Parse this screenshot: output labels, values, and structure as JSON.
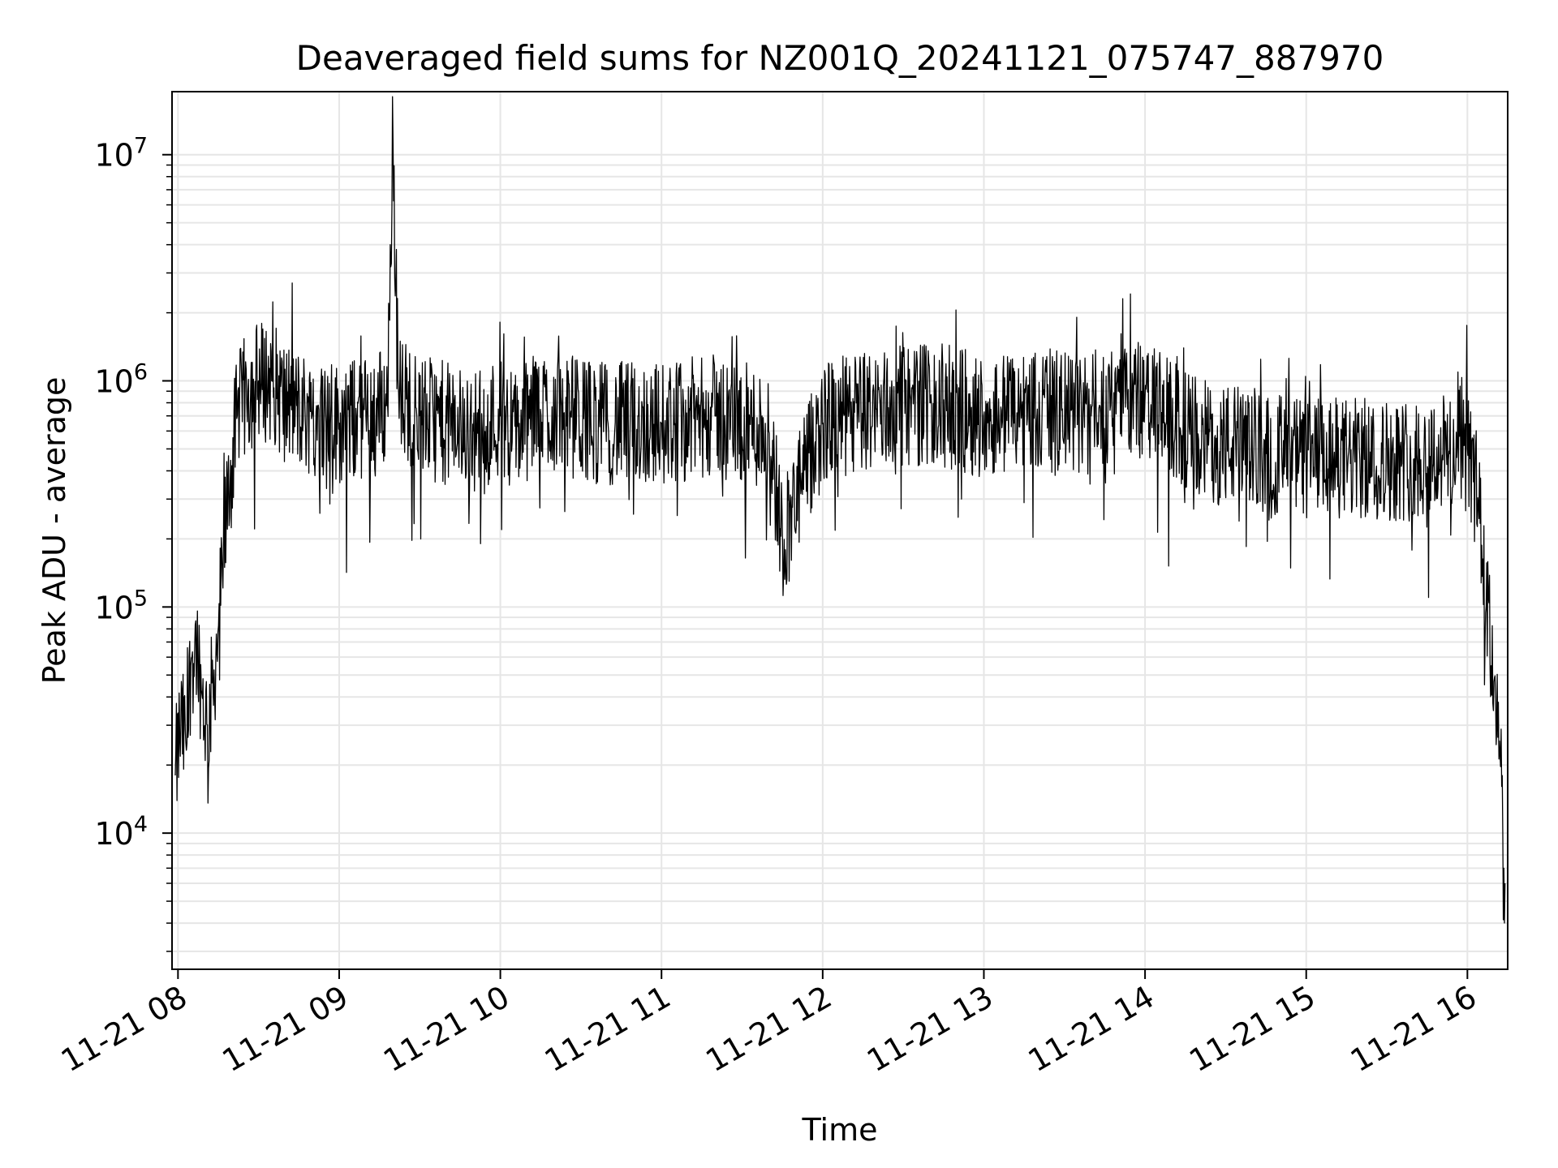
{
  "chart_data": {
    "type": "line",
    "title": "Deaveraged field sums for NZ001Q_20241121_075747_887970",
    "xlabel": "Time",
    "ylabel": "Peak ADU - average",
    "yscale": "log",
    "ylim": [
      2500,
      19000000
    ],
    "xlim": [
      "2024-11-21T07:57:47",
      "2024-11-21T16:15:00"
    ],
    "x_ticks": [
      "11-21 08",
      "11-21 09",
      "11-21 10",
      "11-21 11",
      "11-21 12",
      "11-21 13",
      "11-21 14",
      "11-21 15",
      "11-21 16"
    ],
    "y_ticks": [
      {
        "value": 10000,
        "base": "10",
        "exp": "4"
      },
      {
        "value": 100000,
        "base": "10",
        "exp": "5"
      },
      {
        "value": 1000000,
        "base": "10",
        "exp": "6"
      },
      {
        "value": 10000000,
        "base": "10",
        "exp": "7"
      }
    ],
    "grid": true,
    "line_color": "#000000",
    "series": [
      {
        "x": [
          "2024-11-21T07:59:00",
          "2024-11-21T08:01:00",
          "2024-11-21T08:03:00",
          "2024-11-21T08:05:00",
          "2024-11-21T08:07:00",
          "2024-11-21T08:09:00",
          "2024-11-21T08:11:00",
          "2024-11-21T08:13:00",
          "2024-11-21T08:15:00",
          "2024-11-21T08:18:00",
          "2024-11-21T08:22:00",
          "2024-11-21T08:26:00",
          "2024-11-21T08:30:00",
          "2024-11-21T08:35:00",
          "2024-11-21T08:40:00",
          "2024-11-21T08:50:00",
          "2024-11-21T09:00:00",
          "2024-11-21T09:10:00",
          "2024-11-21T09:18:00",
          "2024-11-21T09:20:00",
          "2024-11-21T09:22:00",
          "2024-11-21T09:30:00",
          "2024-11-21T09:40:00",
          "2024-11-21T09:50:00",
          "2024-11-21T10:00:00",
          "2024-11-21T10:06:00",
          "2024-11-21T10:15:00",
          "2024-11-21T10:26:00",
          "2024-11-21T10:40:00",
          "2024-11-21T11:00:00",
          "2024-11-21T11:20:00",
          "2024-11-21T11:40:00",
          "2024-11-21T11:45:00",
          "2024-11-21T12:00:00",
          "2024-11-21T12:20:00",
          "2024-11-21T12:40:00",
          "2024-11-21T13:00:00",
          "2024-11-21T13:20:00",
          "2024-11-21T13:40:00",
          "2024-11-21T13:50:00",
          "2024-11-21T14:00:00",
          "2024-11-21T14:20:00",
          "2024-11-21T14:40:00",
          "2024-11-21T15:00:00",
          "2024-11-21T15:20:00",
          "2024-11-21T15:40:00",
          "2024-11-21T16:00:00",
          "2024-11-21T16:04:00",
          "2024-11-21T16:07:00",
          "2024-11-21T16:10:00",
          "2024-11-21T16:12:00",
          "2024-11-21T16:14:00"
        ],
        "y": [
          18000,
          30000,
          25000,
          60000,
          70000,
          40000,
          30000,
          45000,
          80000,
          250000,
          700000,
          900000,
          1000000,
          1000000,
          800000,
          700000,
          650000,
          700000,
          800000,
          12000000,
          900000,
          700000,
          650000,
          600000,
          700000,
          600000,
          750000,
          700000,
          650000,
          650000,
          700000,
          600000,
          200000,
          650000,
          750000,
          800000,
          700000,
          750000,
          700000,
          900000,
          800000,
          550000,
          500000,
          450000,
          450000,
          450000,
          500000,
          300000,
          100000,
          50000,
          25000,
          6000
        ]
      }
    ]
  }
}
